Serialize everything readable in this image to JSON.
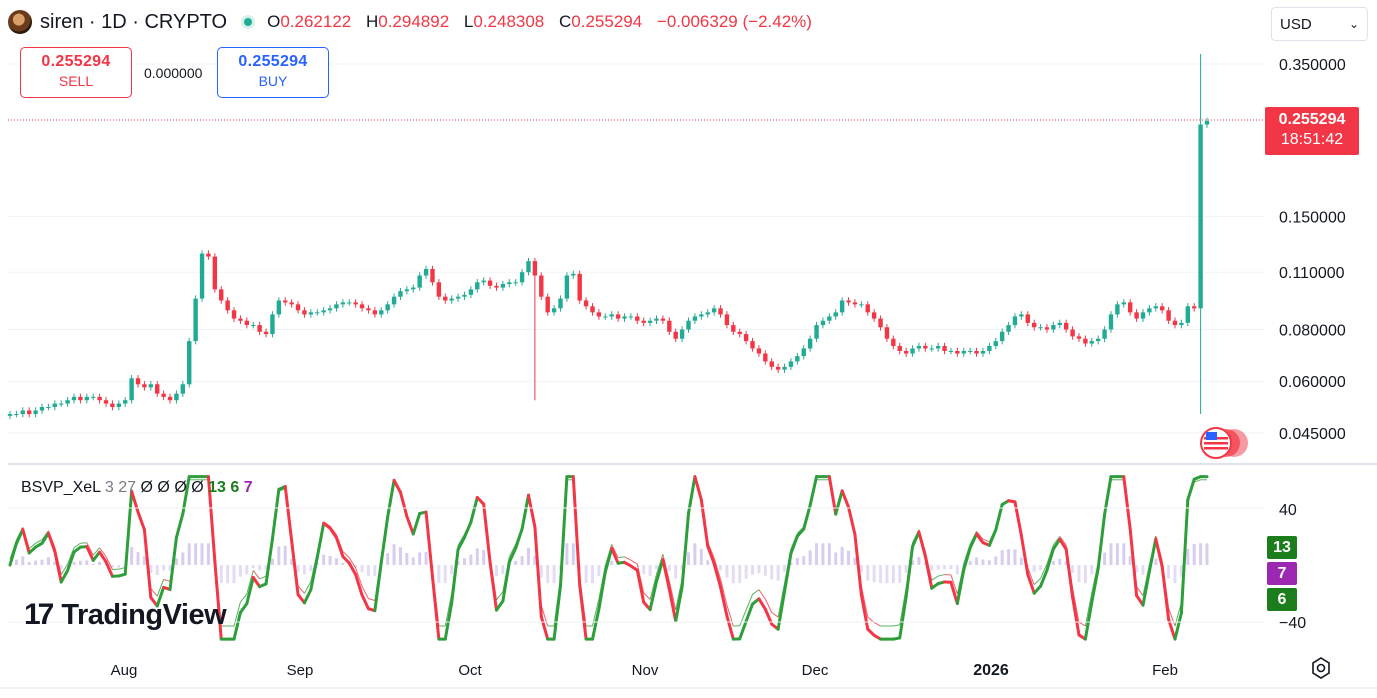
{
  "header": {
    "symbol": "siren · 1D · CRYPTO",
    "o_label": "O",
    "o": "0.262122",
    "h_label": "H",
    "h": "0.294892",
    "l_label": "L",
    "l": "0.248308",
    "c_label": "C",
    "c": "0.255294",
    "change": "−0.006329 (−2.42%)"
  },
  "currency": {
    "value": "USD"
  },
  "trade": {
    "sell_price": "0.255294",
    "sell_label": "SELL",
    "spread": "0.000000",
    "buy_price": "0.255294",
    "buy_label": "BUY"
  },
  "price_axis": {
    "ticks": [
      "0.350000",
      "0.150000",
      "0.110000",
      "0.080000",
      "0.060000",
      "0.045000"
    ],
    "last_price": "0.255294",
    "countdown": "18:51:42"
  },
  "time_axis": {
    "labels": [
      "Aug",
      "Sep",
      "Oct",
      "Nov",
      "Dec",
      "2026",
      "Feb"
    ]
  },
  "indicator": {
    "name": "BSVP_XeL",
    "params": "3 27",
    "vals": [
      "Ø",
      "Ø",
      "Ø",
      "Ø"
    ],
    "v1": "13",
    "v2": "6",
    "v3": "7",
    "axis_top": "40",
    "axis_bottom": "−40",
    "tags": [
      {
        "value": "13",
        "color": "#1b7d1b"
      },
      {
        "value": "7",
        "color": "#9c27b0"
      },
      {
        "value": "6",
        "color": "#1b7d1b"
      }
    ]
  },
  "brand": {
    "name": "TradingView"
  },
  "colors": {
    "up": "#22ab94",
    "down": "#f23645",
    "osc_up": "#2e9e3a",
    "osc_down": "#f23645"
  },
  "chart_data": {
    "type": "candlestick",
    "symbol": "siren",
    "interval": "1D",
    "scale": "log",
    "ylim": [
      0.043,
      0.38
    ],
    "y_ticks": [
      0.35,
      0.15,
      0.11,
      0.08,
      0.06,
      0.045
    ],
    "x_ticks": [
      "Aug",
      "Sep",
      "Oct",
      "Nov",
      "Dec",
      "2026",
      "Feb"
    ],
    "close": [
      0.05,
      0.05,
      0.051,
      0.05,
      0.051,
      0.052,
      0.052,
      0.053,
      0.053,
      0.054,
      0.055,
      0.054,
      0.055,
      0.055,
      0.054,
      0.053,
      0.052,
      0.053,
      0.054,
      0.061,
      0.059,
      0.058,
      0.059,
      0.056,
      0.055,
      0.054,
      0.056,
      0.059,
      0.075,
      0.095,
      0.122,
      0.12,
      0.1,
      0.094,
      0.089,
      0.085,
      0.084,
      0.082,
      0.082,
      0.079,
      0.078,
      0.087,
      0.094,
      0.093,
      0.092,
      0.089,
      0.087,
      0.088,
      0.088,
      0.089,
      0.09,
      0.092,
      0.093,
      0.093,
      0.092,
      0.09,
      0.089,
      0.087,
      0.089,
      0.092,
      0.096,
      0.099,
      0.1,
      0.101,
      0.108,
      0.112,
      0.104,
      0.096,
      0.094,
      0.095,
      0.096,
      0.097,
      0.1,
      0.104,
      0.105,
      0.102,
      0.101,
      0.103,
      0.104,
      0.104,
      0.11,
      0.117,
      0.108,
      0.096,
      0.088,
      0.09,
      0.095,
      0.108,
      0.109,
      0.094,
      0.091,
      0.088,
      0.086,
      0.086,
      0.087,
      0.085,
      0.086,
      0.086,
      0.084,
      0.083,
      0.084,
      0.085,
      0.084,
      0.079,
      0.076,
      0.08,
      0.084,
      0.086,
      0.087,
      0.088,
      0.09,
      0.087,
      0.082,
      0.079,
      0.078,
      0.075,
      0.072,
      0.07,
      0.067,
      0.065,
      0.064,
      0.065,
      0.067,
      0.069,
      0.072,
      0.076,
      0.082,
      0.084,
      0.086,
      0.088,
      0.094,
      0.093,
      0.092,
      0.092,
      0.088,
      0.085,
      0.081,
      0.076,
      0.073,
      0.071,
      0.07,
      0.072,
      0.073,
      0.072,
      0.072,
      0.073,
      0.071,
      0.071,
      0.07,
      0.071,
      0.071,
      0.07,
      0.071,
      0.073,
      0.075,
      0.079,
      0.082,
      0.086,
      0.087,
      0.083,
      0.081,
      0.081,
      0.08,
      0.082,
      0.083,
      0.08,
      0.077,
      0.076,
      0.074,
      0.075,
      0.076,
      0.08,
      0.087,
      0.092,
      0.093,
      0.088,
      0.085,
      0.088,
      0.09,
      0.091,
      0.089,
      0.084,
      0.082,
      0.083,
      0.091,
      0.09,
      0.25,
      0.255
    ],
    "timezone_flag": "US"
  }
}
